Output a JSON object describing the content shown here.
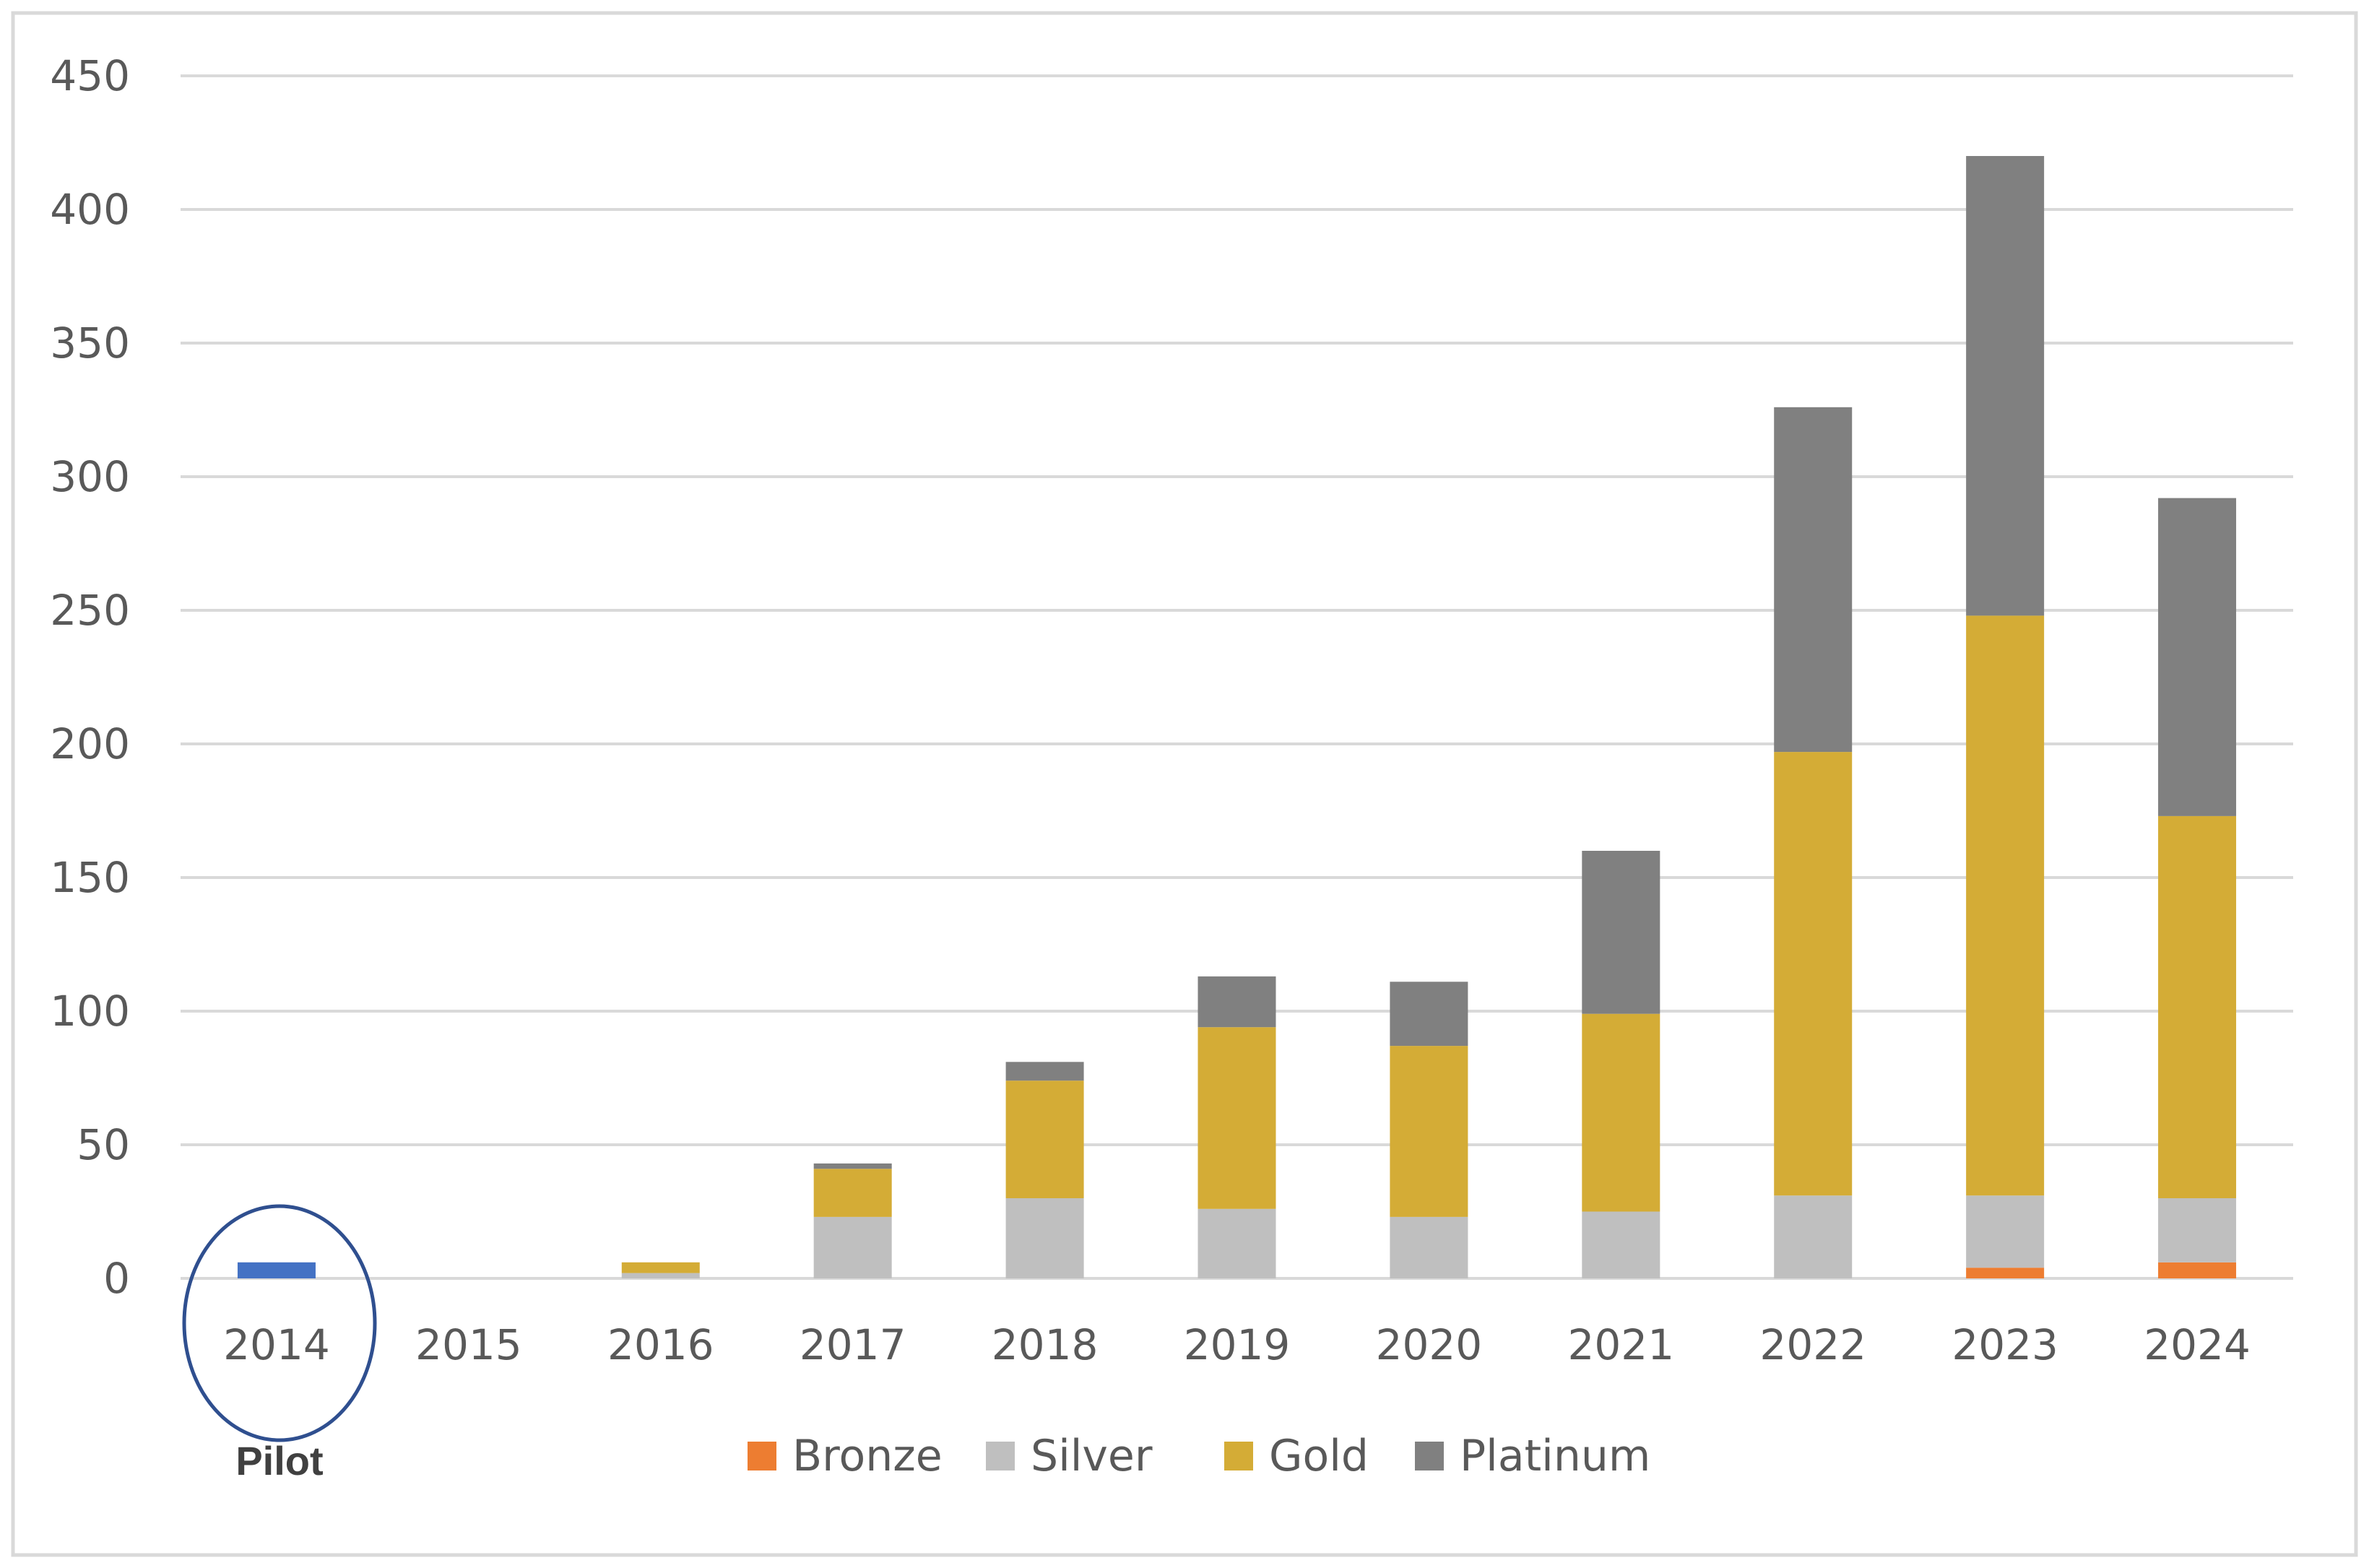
{
  "chart_data": {
    "type": "bar",
    "stacked": true,
    "title": "",
    "xlabel": "",
    "ylabel": "",
    "ylim": [
      0,
      450
    ],
    "yticks": [
      0,
      50,
      100,
      150,
      200,
      250,
      300,
      350,
      400,
      450
    ],
    "grid": true,
    "legend_position": "bottom",
    "categories": [
      "2014",
      "2015",
      "2016",
      "2017",
      "2018",
      "2019",
      "2020",
      "2021",
      "2022",
      "2023",
      "2024"
    ],
    "series": [
      {
        "name": "Bronze",
        "color": "#ED7D31",
        "values": [
          0,
          0,
          0,
          0,
          0,
          0,
          0,
          0,
          0,
          4,
          6
        ]
      },
      {
        "name": "Silver",
        "color": "#BFBFBF",
        "values": [
          0,
          0,
          2,
          23,
          30,
          26,
          23,
          25,
          31,
          27,
          24
        ]
      },
      {
        "name": "Gold",
        "color": "#D4AC36",
        "values": [
          0,
          0,
          4,
          18,
          44,
          68,
          64,
          74,
          166,
          217,
          143
        ]
      },
      {
        "name": "Platinum",
        "color": "#808080",
        "values": [
          0,
          0,
          0,
          2,
          7,
          19,
          24,
          61,
          129,
          172,
          119
        ]
      }
    ],
    "pilot": {
      "category": "2014",
      "value": 6,
      "color": "#4472C4",
      "label": "Pilot",
      "highlight_color": "#2F4F8F"
    }
  },
  "colors": {
    "gridline": "#D9D9D9",
    "axis_line": "#D9D9D9",
    "tick_text": "#595959",
    "frame_border": "#D9D9D9"
  }
}
